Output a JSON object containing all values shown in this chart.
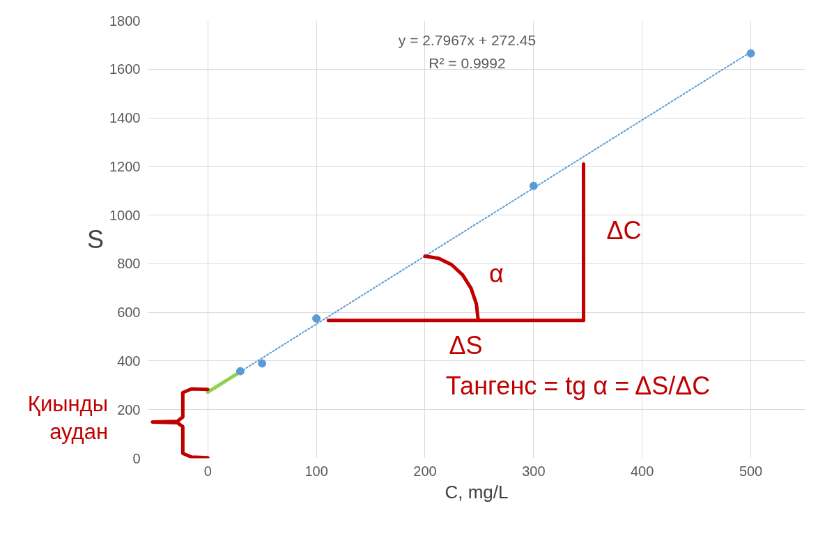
{
  "chart_data": {
    "type": "scatter",
    "xlabel": "C, mg/L",
    "ylabel": "S",
    "xlim": [
      -55,
      550
    ],
    "ylim": [
      0,
      1800
    ],
    "xticks": [
      0,
      100,
      200,
      300,
      400,
      500
    ],
    "yticks": [
      0,
      200,
      400,
      600,
      800,
      1000,
      1200,
      1400,
      1600,
      1800
    ],
    "grid": true,
    "series": [
      {
        "type": "line",
        "color": "#5b9bd5",
        "line_style": "dotted",
        "x": [
          30,
          500
        ],
        "values": [
          356,
          1671
        ]
      },
      {
        "type": "line",
        "color": "#92d050",
        "x": [
          0,
          30
        ],
        "values": [
          272,
          356
        ]
      },
      {
        "type": "line",
        "color": "#c00000",
        "x": [
          111,
          346,
          346
        ],
        "values": [
          567,
          567,
          1210
        ]
      },
      {
        "type": "line",
        "color": "#c00000",
        "x": [
          249,
          247.3,
          242.4,
          234.6,
          224.5,
          212.7,
          200
        ],
        "values": [
          567,
          635,
          699,
          754,
          796,
          822,
          831
        ]
      },
      {
        "type": "line",
        "color": "#c00000",
        "x": [
          0,
          -15,
          -23,
          -23,
          -28,
          -51,
          -28,
          -23,
          -23,
          -15,
          0
        ],
        "values": [
          283,
          285,
          270,
          170,
          152,
          149,
          146,
          130,
          20,
          5,
          2
        ]
      },
      {
        "color": "#5b9bd5",
        "marker": "circle",
        "x": [
          30,
          50,
          100,
          300,
          500
        ],
        "values": [
          358,
          390,
          575,
          1120,
          1665
        ]
      }
    ],
    "annotations": [
      "y = 2.7967x + 272.45",
      "R² = 0.9992",
      "α",
      "ΔC",
      "ΔS",
      "Тангенс = tg α = ΔS/ΔC",
      "Қиынды\nаудан"
    ]
  }
}
